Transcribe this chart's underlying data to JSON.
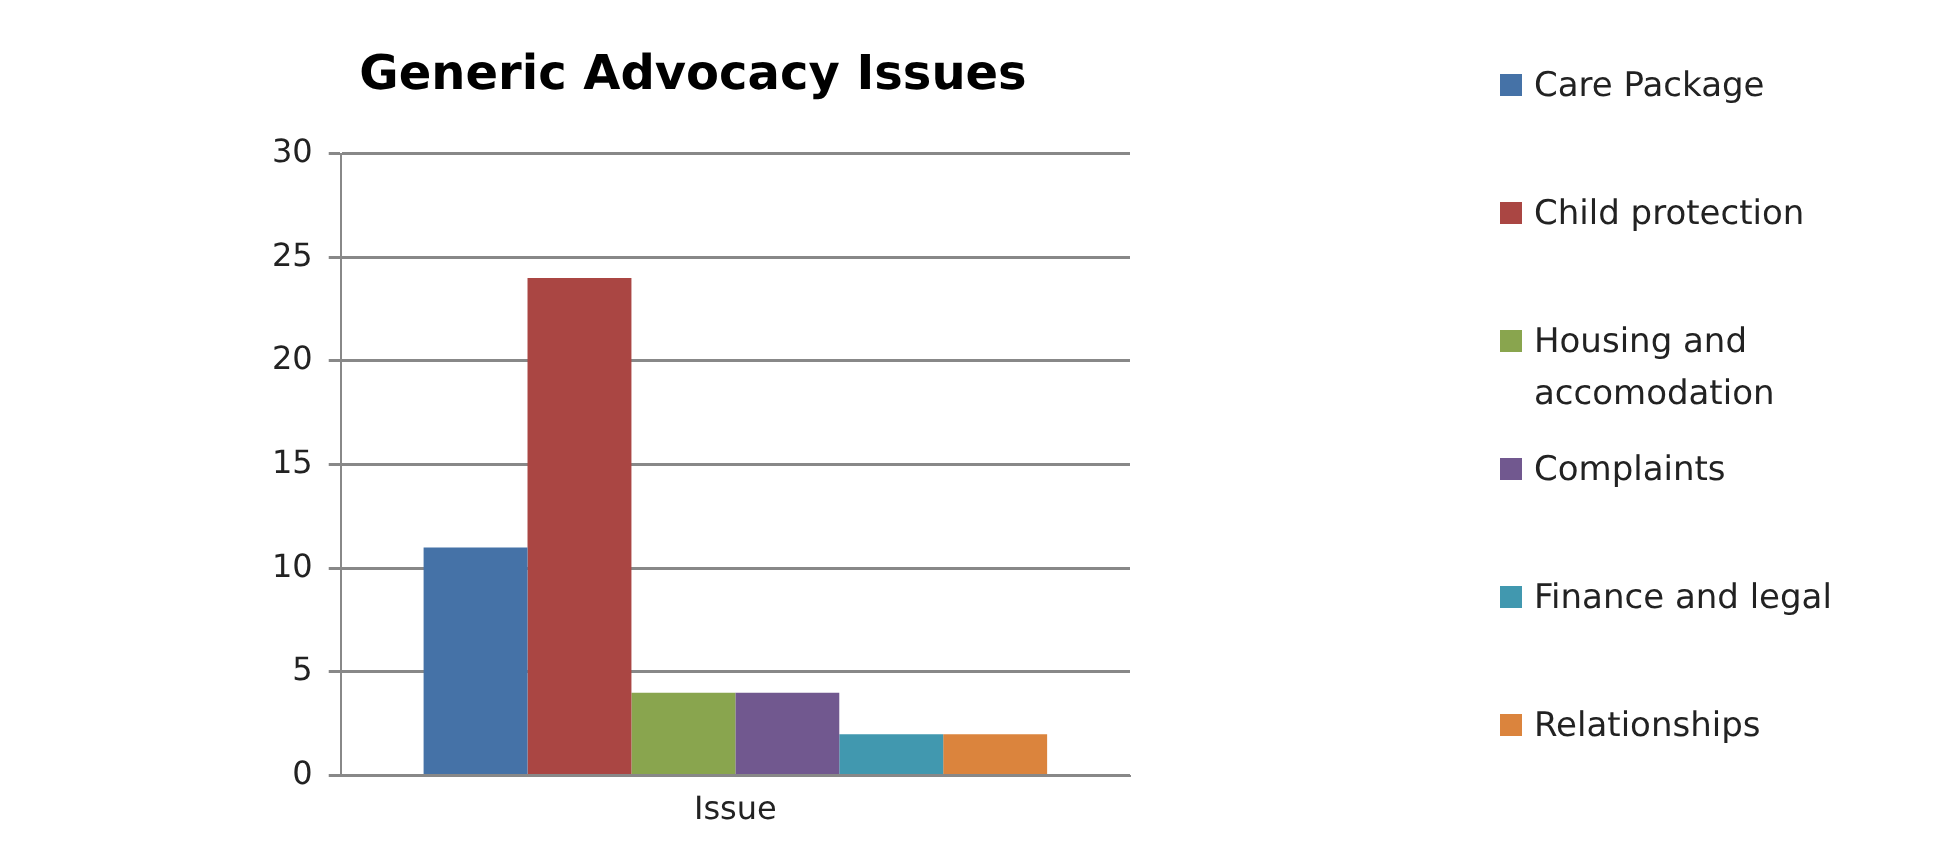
{
  "chart_data": {
    "type": "bar",
    "title": "Generic Advocacy Issues",
    "categories": [
      "Issue"
    ],
    "series": [
      {
        "name": "Care Package",
        "color": "#4572a7",
        "values": [
          11
        ]
      },
      {
        "name": "Child protection",
        "color": "#aa4643",
        "values": [
          24
        ]
      },
      {
        "name": "Housing and accomodation",
        "color": "#89a54e",
        "values": [
          4
        ]
      },
      {
        "name": "Complaints",
        "color": "#71588f",
        "values": [
          4
        ]
      },
      {
        "name": "Finance and legal",
        "color": "#4198af",
        "values": [
          2
        ]
      },
      {
        "name": "Relationships",
        "color": "#db843d",
        "values": [
          2
        ]
      }
    ],
    "ylim": [
      0,
      30
    ],
    "yticks": [
      0,
      5,
      10,
      15,
      20,
      25,
      30
    ],
    "grid": "y",
    "legend": "right"
  }
}
